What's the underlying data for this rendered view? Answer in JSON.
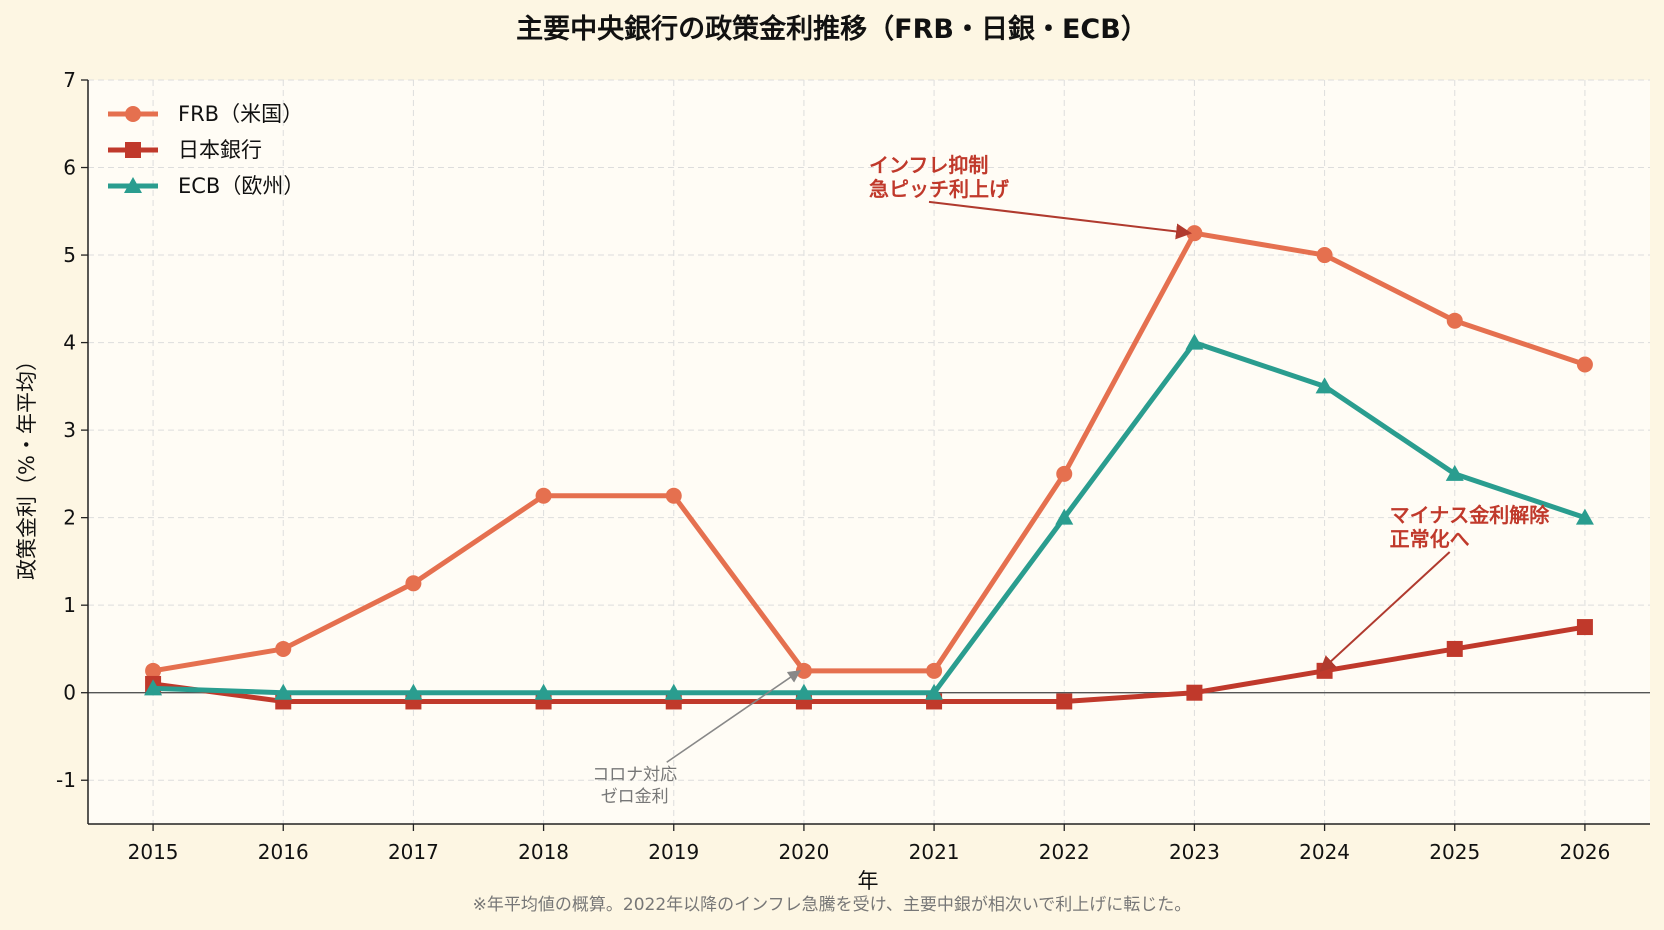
{
  "chart_data": {
    "type": "line",
    "title": "主要中央銀行の政策金利推移（FRB・日銀・ECB）",
    "xlabel": "年",
    "ylabel": "政策金利（%・年平均）",
    "footnote": "※年平均値の概算。2022年以降のインフレ急騰を受け、主要中銀が相次いで利上げに転じた。",
    "x": [
      2015,
      2016,
      2017,
      2018,
      2019,
      2020,
      2021,
      2022,
      2023,
      2024,
      2025,
      2026
    ],
    "xlim": [
      2014.5,
      2026.5
    ],
    "ylim": [
      -1.5,
      7
    ],
    "yticks": [
      -1,
      0,
      1,
      2,
      3,
      4,
      5,
      6,
      7
    ],
    "grid": true,
    "zero_line": true,
    "legend_position": "top-left",
    "series": [
      {
        "name": "FRB（米国）",
        "color": "#e5704f",
        "marker": "circle",
        "values": [
          0.25,
          0.5,
          1.25,
          2.25,
          2.25,
          0.25,
          0.25,
          2.5,
          5.25,
          5.0,
          4.25,
          3.75
        ]
      },
      {
        "name": "日本銀行",
        "color": "#c0392b",
        "marker": "square",
        "values": [
          0.1,
          -0.1,
          -0.1,
          -0.1,
          -0.1,
          -0.1,
          -0.1,
          -0.1,
          0.0,
          0.25,
          0.5,
          0.75
        ]
      },
      {
        "name": "ECB（欧州）",
        "color": "#2a9d8f",
        "marker": "triangle",
        "values": [
          0.05,
          0.0,
          0.0,
          0.0,
          0.0,
          0.0,
          0.0,
          2.0,
          4.0,
          3.5,
          2.5,
          2.0
        ]
      }
    ],
    "annotations": [
      {
        "lines": [
          "インフレ抑制",
          "急ピッチ利上げ"
        ],
        "style": "red",
        "target": [
          2023,
          5.25
        ],
        "text_at": [
          2020.5,
          5.95
        ],
        "align": "start"
      },
      {
        "lines": [
          "マイナス金利解除",
          "正常化へ"
        ],
        "style": "red",
        "target": [
          2024,
          0.25
        ],
        "text_at": [
          2024.5,
          1.95
        ],
        "align": "start"
      },
      {
        "lines": [
          "コロナ対応",
          "ゼロ金利"
        ],
        "style": "gray",
        "target": [
          2020,
          0.25
        ],
        "text_at": [
          2018.7,
          -1.0
        ],
        "align": "middle"
      }
    ]
  }
}
